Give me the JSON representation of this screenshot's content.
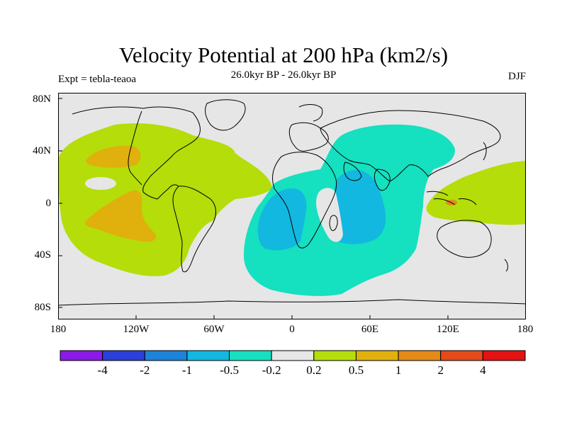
{
  "title": "Velocity Potential at 200 hPa (km2/s)",
  "subtitle": "26.0kyr BP - 26.0kyr BP",
  "left_label": "Expt = tebla-teaoa",
  "right_label": "DJF",
  "lat_labels": [
    "80N",
    "40N",
    "0",
    "40S",
    "80S"
  ],
  "lon_labels": [
    "180",
    "120W",
    "60W",
    "0",
    "60E",
    "120E",
    "180"
  ],
  "colorbar": {
    "colors": [
      "#8a1be6",
      "#2b3fd9",
      "#1e82d8",
      "#12b8df",
      "#15e0c0",
      "#e6e6e6",
      "#b4dd0a",
      "#e0b00d",
      "#e48a17",
      "#e44a1a",
      "#e41212"
    ],
    "labels": [
      "-4",
      "-2",
      "-1",
      "-0.5",
      "-0.2",
      "0.2",
      "0.5",
      "1",
      "2",
      "4"
    ]
  },
  "colors": {
    "land_bg": "#e6e6e6",
    "pos_0_5": "#b4dd0a",
    "pos_1": "#e0b00d",
    "neg_0_2": "#15e0c0",
    "neg_0_5": "#12b8df"
  }
}
